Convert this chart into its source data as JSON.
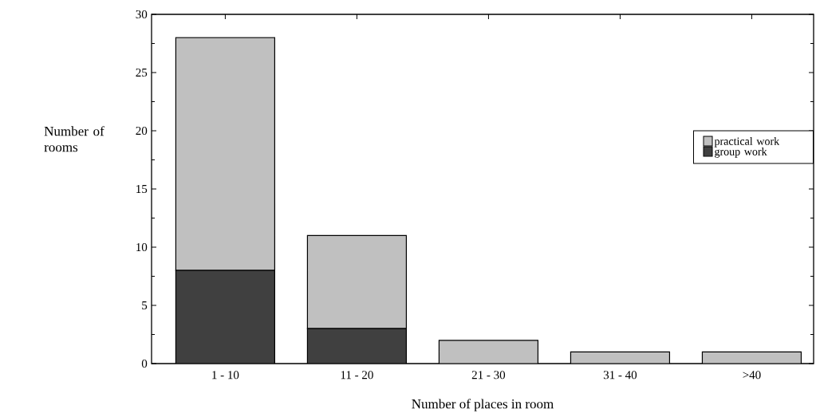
{
  "chart_data": {
    "type": "bar",
    "stacked": true,
    "xlabel": "Number of places in room",
    "ylabel": "Number of rooms",
    "categories": [
      "1 - 10",
      "11 - 20",
      "21 - 30",
      "31 - 40",
      ">40"
    ],
    "series": [
      {
        "name": "group work",
        "color": "#404040",
        "values": [
          8,
          3,
          0,
          0,
          0
        ]
      },
      {
        "name": "practical work",
        "color": "#c0c0c0",
        "values": [
          20,
          8,
          2,
          1,
          1
        ]
      }
    ],
    "ylim": [
      0,
      30
    ],
    "yticks": [
      0,
      5,
      10,
      15,
      20,
      25,
      30
    ],
    "legend": "right"
  }
}
